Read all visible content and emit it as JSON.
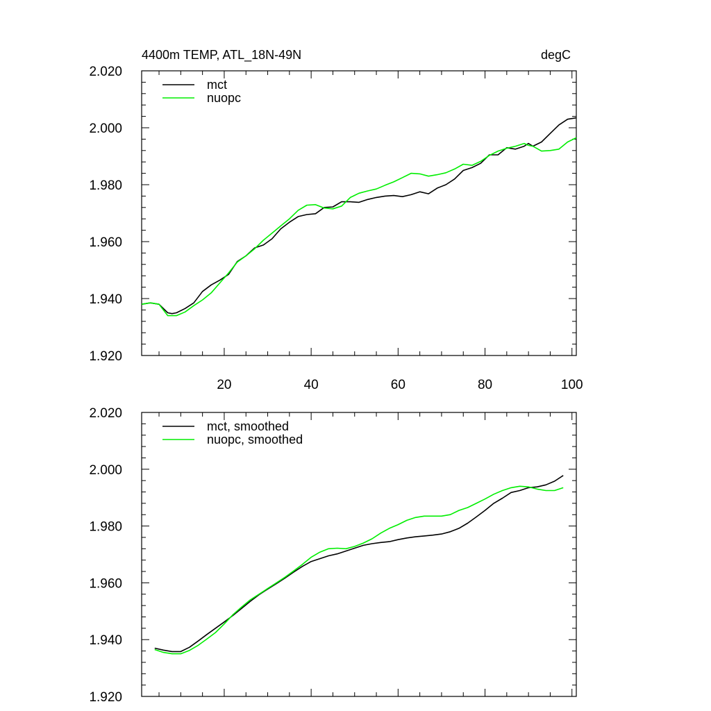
{
  "chart_data": [
    {
      "type": "line",
      "title_left": "4400m TEMP, ATL_18N-49N",
      "title_right": "degC",
      "xlabel": "",
      "ylabel": "",
      "xlim": [
        1,
        101
      ],
      "ylim": [
        1.92,
        2.02
      ],
      "xticks": [
        20,
        40,
        60,
        80,
        100
      ],
      "xtick_labels": [
        "20",
        "40",
        "60",
        "80",
        "100"
      ],
      "yticks": [
        1.92,
        1.94,
        1.96,
        1.98,
        2.0,
        2.02
      ],
      "ytick_labels": [
        "1.920",
        "1.940",
        "1.960",
        "1.980",
        "2.000",
        "2.020"
      ],
      "legend_position": "top-left",
      "series": [
        {
          "name": "mct",
          "color": "#000000",
          "x": [
            1,
            3,
            5,
            7,
            8,
            9,
            11,
            13,
            15,
            17,
            19,
            21,
            23,
            25,
            27,
            29,
            31,
            33,
            35,
            37,
            39,
            41,
            43,
            45,
            47,
            49,
            51,
            53,
            55,
            57,
            59,
            61,
            63,
            65,
            67,
            69,
            71,
            73,
            75,
            77,
            79,
            81,
            83,
            85,
            87,
            89,
            90,
            91,
            93,
            95,
            97,
            99,
            101
          ],
          "y": [
            1.938,
            1.9385,
            1.938,
            1.935,
            1.9347,
            1.935,
            1.9365,
            1.9385,
            1.9425,
            1.9448,
            1.9465,
            1.9485,
            1.953,
            1.955,
            1.9578,
            1.9588,
            1.961,
            1.9645,
            1.9668,
            1.9688,
            1.9695,
            1.9698,
            1.972,
            1.9722,
            1.974,
            1.974,
            1.9738,
            1.9748,
            1.9755,
            1.976,
            1.9762,
            1.9758,
            1.9765,
            1.9775,
            1.9768,
            1.9788,
            1.98,
            1.982,
            1.985,
            1.986,
            1.9875,
            1.9905,
            1.9905,
            1.993,
            1.9925,
            1.9935,
            1.9945,
            1.9935,
            1.995,
            1.998,
            2.001,
            2.003,
            2.0035
          ]
        },
        {
          "name": "nuopc",
          "color": "#00ee00",
          "x": [
            1,
            3,
            5,
            7,
            8,
            9,
            11,
            13,
            15,
            17,
            19,
            21,
            23,
            25,
            27,
            29,
            31,
            33,
            35,
            37,
            39,
            41,
            43,
            45,
            47,
            49,
            51,
            53,
            55,
            57,
            59,
            61,
            63,
            65,
            67,
            69,
            71,
            73,
            75,
            77,
            79,
            81,
            83,
            85,
            87,
            89,
            90,
            91,
            93,
            95,
            97,
            99,
            101
          ],
          "y": [
            1.938,
            1.9385,
            1.938,
            1.934,
            1.934,
            1.934,
            1.9353,
            1.9375,
            1.9395,
            1.942,
            1.9455,
            1.949,
            1.9528,
            1.955,
            1.9575,
            1.9605,
            1.963,
            1.9655,
            1.968,
            1.971,
            1.9728,
            1.973,
            1.9718,
            1.9715,
            1.9725,
            1.9755,
            1.977,
            1.9778,
            1.9785,
            1.9798,
            1.981,
            1.9825,
            1.984,
            1.9838,
            1.983,
            1.9835,
            1.9842,
            1.9855,
            1.9872,
            1.9868,
            1.9882,
            1.9903,
            1.9918,
            1.9928,
            1.9935,
            1.9945,
            1.9938,
            1.9935,
            1.9918,
            1.992,
            1.9925,
            1.995,
            1.9965
          ]
        }
      ]
    },
    {
      "type": "line",
      "xlabel": "",
      "ylabel": "",
      "xlim": [
        1,
        101
      ],
      "ylim": [
        1.92,
        2.02
      ],
      "xticks": [
        20,
        40,
        60,
        80,
        100
      ],
      "yticks": [
        1.92,
        1.94,
        1.96,
        1.98,
        2.0,
        2.02
      ],
      "ytick_labels": [
        "1.920",
        "1.940",
        "1.960",
        "1.980",
        "2.000",
        "2.020"
      ],
      "legend_position": "top-left",
      "series": [
        {
          "name": "mct, smoothed",
          "color": "#000000",
          "x": [
            4,
            6,
            8,
            10,
            12,
            14,
            16,
            18,
            20,
            22,
            24,
            26,
            28,
            30,
            32,
            34,
            36,
            38,
            40,
            42,
            44,
            46,
            48,
            50,
            52,
            54,
            56,
            58,
            60,
            62,
            64,
            66,
            68,
            70,
            72,
            74,
            76,
            78,
            80,
            82,
            84,
            86,
            88,
            90,
            92,
            94,
            96,
            98
          ],
          "y": [
            1.937,
            1.9363,
            1.9358,
            1.9358,
            1.9373,
            1.9395,
            1.9418,
            1.944,
            1.9462,
            1.9485,
            1.951,
            1.9535,
            1.9558,
            1.9578,
            1.9597,
            1.9617,
            1.9638,
            1.9658,
            1.9675,
            1.9685,
            1.9695,
            1.9702,
            1.9712,
            1.9722,
            1.9732,
            1.9738,
            1.9742,
            1.9745,
            1.9752,
            1.9758,
            1.9762,
            1.9765,
            1.9768,
            1.9772,
            1.978,
            1.9792,
            1.981,
            1.9832,
            1.9855,
            1.988,
            1.9898,
            1.9918,
            1.9925,
            1.9935,
            1.9938,
            1.9945,
            1.9958,
            1.9978
          ]
        },
        {
          "name": "nuopc, smoothed",
          "color": "#00ee00",
          "x": [
            4,
            6,
            8,
            10,
            12,
            14,
            16,
            18,
            20,
            22,
            24,
            26,
            28,
            30,
            32,
            34,
            36,
            38,
            40,
            42,
            44,
            46,
            48,
            50,
            52,
            54,
            56,
            58,
            60,
            62,
            64,
            66,
            68,
            70,
            72,
            74,
            76,
            78,
            80,
            82,
            84,
            86,
            88,
            90,
            92,
            94,
            96,
            98
          ],
          "y": [
            1.9365,
            1.9355,
            1.935,
            1.935,
            1.9362,
            1.938,
            1.9402,
            1.9425,
            1.9455,
            1.9488,
            1.9515,
            1.954,
            1.956,
            1.958,
            1.96,
            1.962,
            1.9642,
            1.9665,
            1.969,
            1.9708,
            1.972,
            1.9722,
            1.972,
            1.9728,
            1.974,
            1.9755,
            1.9775,
            1.9792,
            1.9805,
            1.982,
            1.983,
            1.9835,
            1.9835,
            1.9835,
            1.984,
            1.9855,
            1.9865,
            1.988,
            1.9895,
            1.9912,
            1.9925,
            1.9935,
            1.994,
            1.9938,
            1.993,
            1.9925,
            1.9925,
            1.9935
          ]
        }
      ]
    }
  ]
}
